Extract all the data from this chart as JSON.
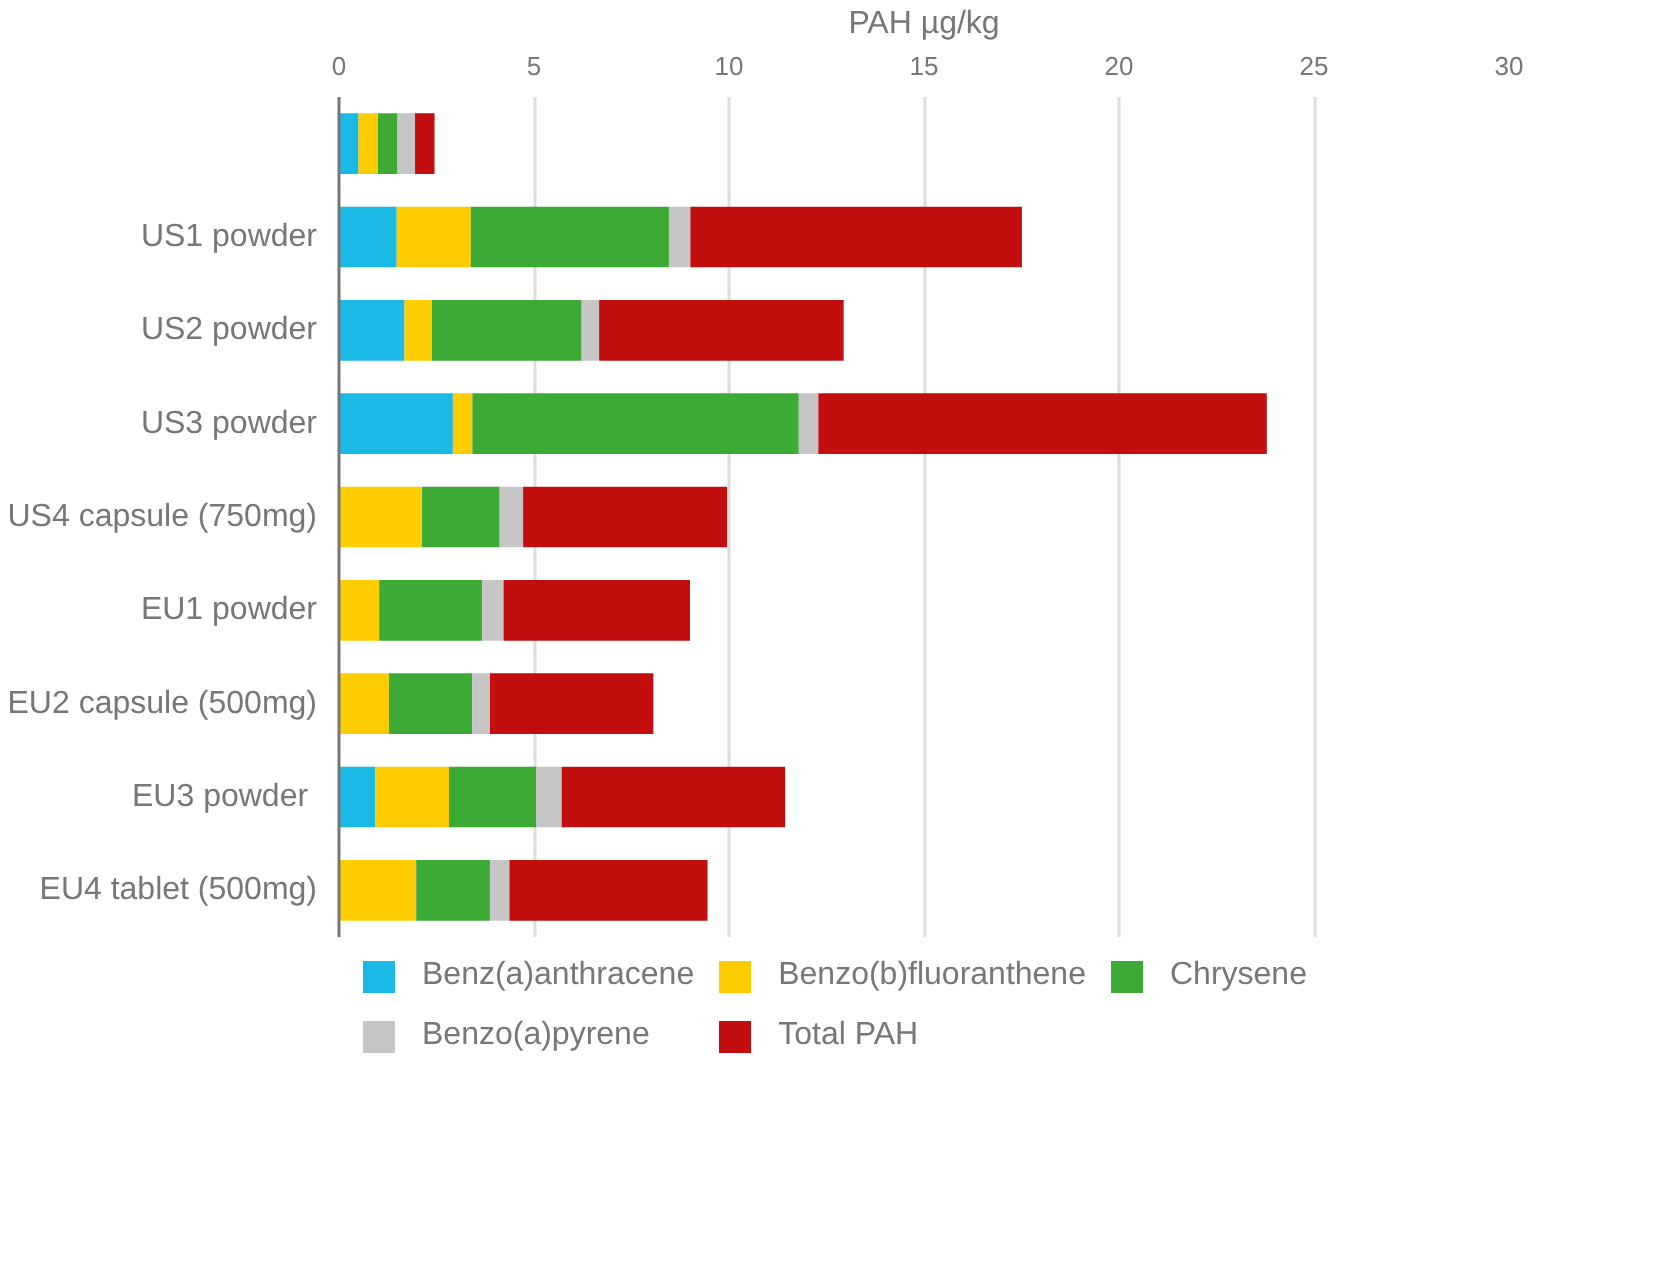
{
  "chart_data": {
    "type": "bar",
    "orientation": "horizontal",
    "stacked": true,
    "xlabel": "PAH µg/kg",
    "categories": [
      null,
      "US1 powder",
      "US2 powder",
      "US3 powder",
      "US4 capsule (750mg)",
      "EU1 powder",
      "EU2 capsule (500mg)",
      "EU3  powder",
      "EU4 tablet (500mg)"
    ],
    "series": [
      {
        "name": "Benz(a)anthracene",
        "color": "#1bb9e6",
        "values": [
          0.5,
          1.48,
          1.68,
          2.92,
          0,
          0,
          0,
          0.93,
          0
        ]
      },
      {
        "name": "Benzo(b)fluoranthene",
        "color": "#ffcc00",
        "values": [
          0.5,
          1.9,
          0.7,
          0.5,
          2.13,
          1.03,
          1.28,
          1.89,
          1.98
        ]
      },
      {
        "name": "Chrysene",
        "color": "#3caa35",
        "values": [
          0.5,
          5.08,
          3.84,
          8.37,
          1.99,
          2.64,
          2.14,
          2.24,
          1.89
        ]
      },
      {
        "name": "Benzo(a)pyrene",
        "color": "#c6c6c6",
        "values": [
          0.45,
          0.55,
          0.45,
          0.5,
          0.6,
          0.55,
          0.45,
          0.65,
          0.5
        ]
      },
      {
        "name": "Total PAH",
        "color": "#c30e10",
        "values": [
          0.5,
          8.5,
          6.27,
          11.5,
          5.23,
          4.78,
          4.19,
          5.73,
          5.08
        ]
      }
    ],
    "xlim": [
      0,
      30
    ],
    "xticks": [
      0,
      5,
      10,
      15,
      20,
      25,
      30
    ],
    "grid": "x",
    "legend": "bottom"
  }
}
